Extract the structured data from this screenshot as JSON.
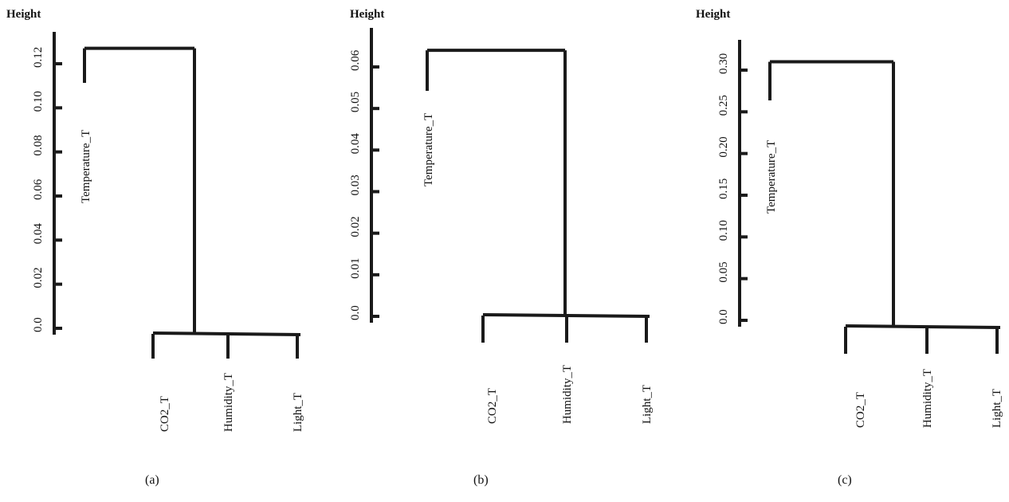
{
  "chart_data": [
    {
      "type": "dendrogram",
      "caption": "(a)",
      "ylabel": "Height",
      "ylim": [
        0,
        0.13
      ],
      "yticks": [
        0.0,
        0.02,
        0.04,
        0.06,
        0.08,
        0.1,
        0.12
      ],
      "ytick_labels": [
        "0.0",
        "0.02",
        "0.04",
        "0.06",
        "0.08",
        "0.10",
        "0.12"
      ],
      "leaves": [
        "Temperature_T",
        "CO2_T",
        "Humidity_T",
        "Light_T"
      ],
      "merges": [
        {
          "members": [
            "CO2_T",
            "Humidity_T",
            "Light_T"
          ],
          "height": 0.0
        },
        {
          "members": [
            "Temperature_T",
            "CO2_T+Humidity_T+Light_T"
          ],
          "height": 0.127
        }
      ],
      "colors": {
        "lines": "#1a1a1a"
      }
    },
    {
      "type": "dendrogram",
      "caption": "(b)",
      "ylabel": "Height",
      "ylim": [
        0,
        0.066
      ],
      "yticks": [
        0.0,
        0.01,
        0.02,
        0.03,
        0.04,
        0.05,
        0.06
      ],
      "ytick_labels": [
        "0.0",
        "0.01",
        "0.02",
        "0.03",
        "0.04",
        "0.05",
        "0.06"
      ],
      "leaves": [
        "Temperature_T",
        "CO2_T",
        "Humidity_T",
        "Light_T"
      ],
      "merges": [
        {
          "members": [
            "CO2_T",
            "Humidity_T",
            "Light_T"
          ],
          "height": 0.0
        },
        {
          "members": [
            "Temperature_T",
            "CO2_T+Humidity_T+Light_T"
          ],
          "height": 0.064
        }
      ],
      "colors": {
        "lines": "#1a1a1a"
      }
    },
    {
      "type": "dendrogram",
      "caption": "(c)",
      "ylabel": "Height",
      "ylim": [
        0,
        0.33
      ],
      "yticks": [
        0.0,
        0.05,
        0.1,
        0.15,
        0.2,
        0.25,
        0.3
      ],
      "ytick_labels": [
        "0.0",
        "0.05",
        "0.10",
        "0.15",
        "0.20",
        "0.25",
        "0.30"
      ],
      "leaves": [
        "Temperature_T",
        "CO2_T",
        "Humidity_T",
        "Light_T"
      ],
      "merges": [
        {
          "members": [
            "CO2_T",
            "Humidity_T",
            "Light_T"
          ],
          "height": 0.0
        },
        {
          "members": [
            "Temperature_T",
            "CO2_T+Humidity_T+Light_T"
          ],
          "height": 0.31
        }
      ],
      "colors": {
        "lines": "#1a1a1a"
      }
    }
  ]
}
